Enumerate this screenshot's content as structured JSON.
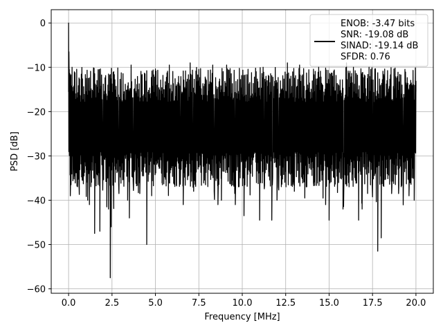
{
  "chart_data": {
    "type": "line",
    "xlabel": "Frequency [MHz]",
    "ylabel": "PSD [dB]",
    "xlim": [
      -1.0,
      21.0
    ],
    "ylim": [
      -61.0,
      3.0
    ],
    "x_ticks": [
      0.0,
      2.5,
      5.0,
      7.5,
      10.0,
      12.5,
      15.0,
      17.5,
      20.0
    ],
    "x_tick_labels": [
      "0.0",
      "2.5",
      "5.0",
      "7.5",
      "10.0",
      "12.5",
      "15.0",
      "17.5",
      "20.0"
    ],
    "y_ticks": [
      0,
      -10,
      -20,
      -30,
      -40,
      -50,
      -60
    ],
    "y_tick_labels": [
      "0",
      "−10",
      "−20",
      "−30",
      "−40",
      "−50",
      "−60"
    ],
    "grid": true,
    "legend": {
      "placement": "top-right",
      "entries": [
        "ENOB: -3.47 bits",
        "SNR: -19.08 dB",
        "SINAD: -19.14 dB",
        "SFDR: 0.76"
      ]
    },
    "series": [
      {
        "color": "#000000",
        "noise_floor": {
          "x_range": [
            0.0,
            20.0
          ],
          "typical_high": -14,
          "typical_low": -33,
          "median": -22
        },
        "points": [
          [
            0.0,
            0.0
          ],
          [
            0.02,
            -6.5
          ],
          [
            0.04,
            -10.5
          ],
          [
            0.06,
            -17.0
          ],
          [
            0.08,
            -12.0
          ],
          [
            0.1,
            -39.0
          ],
          [
            0.14,
            -36.5
          ],
          [
            0.2,
            -10.0
          ],
          [
            0.3,
            -32.0
          ],
          [
            0.5,
            -30.0
          ],
          [
            0.6,
            -36.0
          ],
          [
            0.8,
            -35.5
          ],
          [
            1.1,
            -40.0
          ],
          [
            1.2,
            -41.0
          ],
          [
            1.5,
            -47.5
          ],
          [
            1.7,
            -36.5
          ],
          [
            1.8,
            -47.0
          ],
          [
            2.2,
            -41.5
          ],
          [
            2.3,
            -42.0
          ],
          [
            2.4,
            -57.5
          ],
          [
            2.45,
            -46.0
          ],
          [
            2.6,
            -11.0
          ],
          [
            2.9,
            -38.5
          ],
          [
            3.4,
            -40.0
          ],
          [
            3.5,
            -44.0
          ],
          [
            3.6,
            -9.5
          ],
          [
            4.1,
            -38.5
          ],
          [
            4.5,
            -50.0
          ],
          [
            4.6,
            -33.0
          ],
          [
            5.4,
            -36.5
          ],
          [
            5.8,
            -9.5
          ],
          [
            6.2,
            -36.5
          ],
          [
            6.6,
            -41.0
          ],
          [
            7.0,
            -9.0
          ],
          [
            7.2,
            -38.0
          ],
          [
            8.3,
            -9.5
          ],
          [
            8.6,
            -41.0
          ],
          [
            8.8,
            -40.0
          ],
          [
            9.1,
            -9.5
          ],
          [
            9.4,
            -35.5
          ],
          [
            9.6,
            -41.0
          ],
          [
            10.1,
            -43.5
          ],
          [
            10.8,
            -11.0
          ],
          [
            11.0,
            -44.5
          ],
          [
            11.2,
            -10.5
          ],
          [
            11.7,
            -44.5
          ],
          [
            12.0,
            -40.0
          ],
          [
            12.6,
            -9.0
          ],
          [
            13.0,
            -38.0
          ],
          [
            13.3,
            -9.5
          ],
          [
            13.6,
            -39.5
          ],
          [
            14.1,
            -36.0
          ],
          [
            14.4,
            -10.0
          ],
          [
            14.8,
            -41.0
          ],
          [
            15.0,
            -44.5
          ],
          [
            15.2,
            -12.0
          ],
          [
            15.8,
            -42.0
          ],
          [
            16.0,
            -9.0
          ],
          [
            16.4,
            -10.0
          ],
          [
            16.7,
            -44.5
          ],
          [
            16.9,
            -42.0
          ],
          [
            17.3,
            -10.0
          ],
          [
            17.8,
            -51.5
          ],
          [
            18.0,
            -48.5
          ],
          [
            18.2,
            -12.0
          ],
          [
            18.6,
            -38.5
          ],
          [
            19.0,
            -38.5
          ],
          [
            19.2,
            -14.0
          ],
          [
            19.6,
            -39.0
          ],
          [
            19.9,
            -40.0
          ],
          [
            20.0,
            -15.5
          ]
        ]
      }
    ]
  }
}
